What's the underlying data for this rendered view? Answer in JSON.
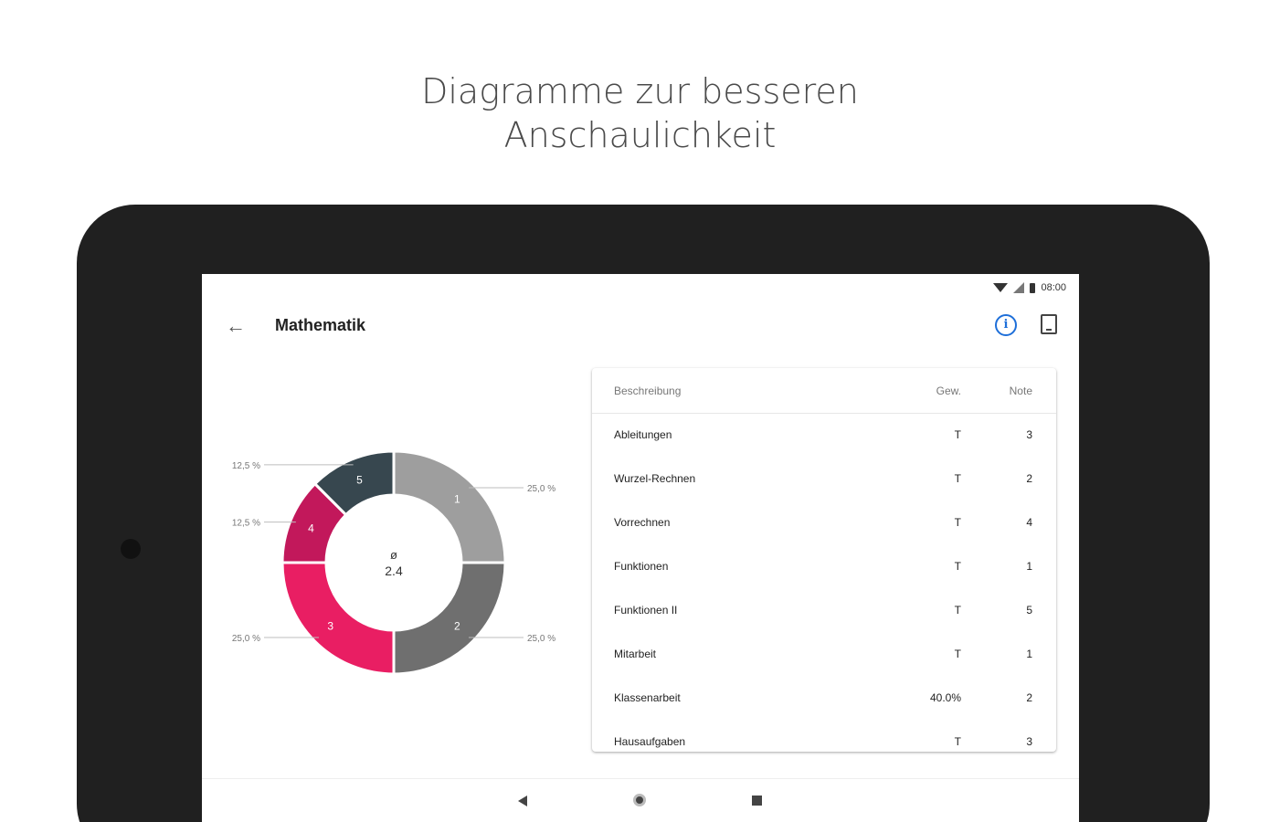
{
  "headline": {
    "line1": "Diagramme zur besseren",
    "line2": "Anschaulichkeit"
  },
  "statusbar": {
    "time": "08:00",
    "icons": [
      "wifi-icon",
      "signal-icon",
      "battery-icon"
    ]
  },
  "appbar": {
    "back_icon": "arrow-back-icon",
    "back_glyph": "←",
    "title": "Mathematik",
    "info_icon": "info-icon",
    "info_glyph": "i",
    "pdf_icon": "pdf-export-icon"
  },
  "chart_data": {
    "type": "pie",
    "donut": true,
    "center_symbol": "ø",
    "center_value": "2.4",
    "slices": [
      {
        "grade": "1",
        "percent": 25.0,
        "label": "25,0 %",
        "color": "#9e9e9e"
      },
      {
        "grade": "2",
        "percent": 25.0,
        "label": "25,0 %",
        "color": "#6f6f6f"
      },
      {
        "grade": "3",
        "percent": 25.0,
        "label": "25,0 %",
        "color": "#e91e63"
      },
      {
        "grade": "4",
        "percent": 12.5,
        "label": "12,5 %",
        "color": "#c2185b"
      },
      {
        "grade": "5",
        "percent": 12.5,
        "label": "12,5 %",
        "color": "#37474f"
      }
    ]
  },
  "table": {
    "headers": {
      "description": "Beschreibung",
      "weight": "Gew.",
      "grade": "Note"
    },
    "rows": [
      {
        "description": "Ableitungen",
        "weight": "T",
        "grade": "3"
      },
      {
        "description": "Wurzel-Rechnen",
        "weight": "T",
        "grade": "2"
      },
      {
        "description": "Vorrechnen",
        "weight": "T",
        "grade": "4"
      },
      {
        "description": "Funktionen",
        "weight": "T",
        "grade": "1"
      },
      {
        "description": "Funktionen II",
        "weight": "T",
        "grade": "5"
      },
      {
        "description": "Mitarbeit",
        "weight": "T",
        "grade": "1"
      },
      {
        "description": "Klassenarbeit",
        "weight": "40.0%",
        "grade": "2"
      },
      {
        "description": "Hausaufgaben",
        "weight": "T",
        "grade": "3"
      }
    ]
  },
  "navbar": {
    "icons": [
      "nav-back-icon",
      "nav-home-icon",
      "nav-recents-icon"
    ]
  }
}
